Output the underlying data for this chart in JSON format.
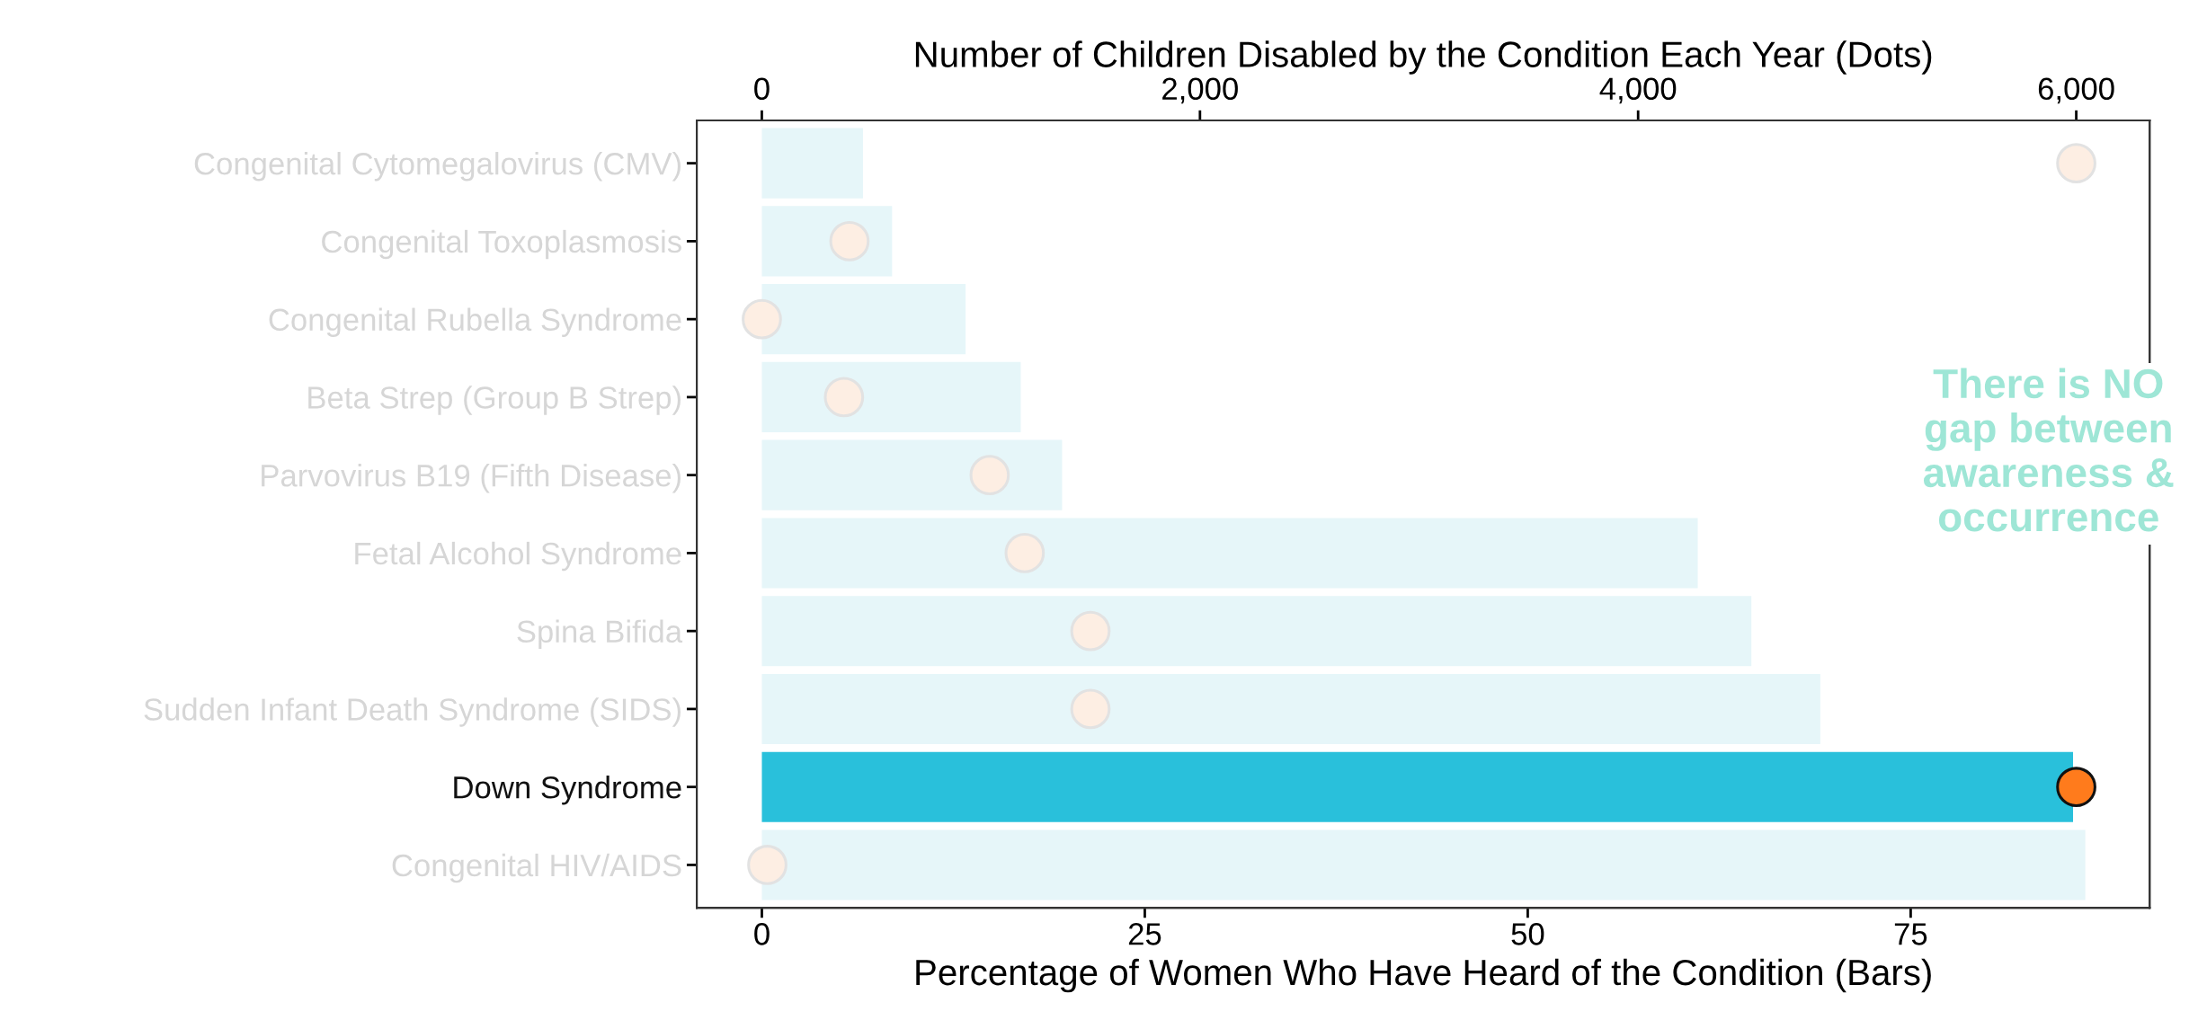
{
  "chart_data": {
    "type": "bar",
    "orientation": "horizontal",
    "categories": [
      "Congenital Cytomegalovirus (CMV)",
      "Congenital Toxoplasmosis",
      "Congenital Rubella Syndrome",
      "Beta Strep (Group B Strep)",
      "Parvovirus B19 (Fifth Disease)",
      "Fetal Alcohol Syndrome",
      "Spina Bifida",
      "Sudden Infant Death Syndrome (SIDS)",
      "Down Syndrome",
      "Congenital HIV/AIDS"
    ],
    "series": [
      {
        "values": [
          6.6,
          8.5,
          13.3,
          16.9,
          19.6,
          61.1,
          64.6,
          69.1,
          85.6,
          86.4
        ],
        "colors": [
          "#e6f6f9",
          "#e6f6f9",
          "#e6f6f9",
          "#e6f6f9",
          "#e6f6f9",
          "#e6f6f9",
          "#e6f6f9",
          "#e6f6f9",
          "#29c0db",
          "#e6f6f9"
        ]
      },
      {
        "type": "scatter",
        "axis": "x2",
        "values": [
          6000,
          400,
          0,
          375,
          1040,
          1200,
          1500,
          1500,
          6000,
          25
        ],
        "colors": [
          "#fdeee3",
          "#fdeee3",
          "#fdeee3",
          "#fdeee3",
          "#fdeee3",
          "#fdeee3",
          "#fdeee3",
          "#fdeee3",
          "#ff7b1c",
          "#fdeee3"
        ]
      }
    ],
    "xlabel": "Percentage of Women Who Have Heard of the Condition (Bars)",
    "x2label": "Number of Children Disabled by the Condition Each Year (Dots)",
    "xlim": [
      -4.25,
      90.6
    ],
    "xticks": [
      0,
      25,
      50,
      75
    ],
    "x2lim": [
      -297,
      6335
    ],
    "x2ticks": [
      {
        "value": 0,
        "label": "0"
      },
      {
        "value": 2000,
        "label": "2,000"
      },
      {
        "value": 4000,
        "label": "4,000"
      },
      {
        "value": 6000,
        "label": "6,000"
      }
    ],
    "marker": "circle",
    "grid": false,
    "legend": false,
    "annotations": [
      "There is NO gap between awareness & occurrence"
    ]
  }
}
